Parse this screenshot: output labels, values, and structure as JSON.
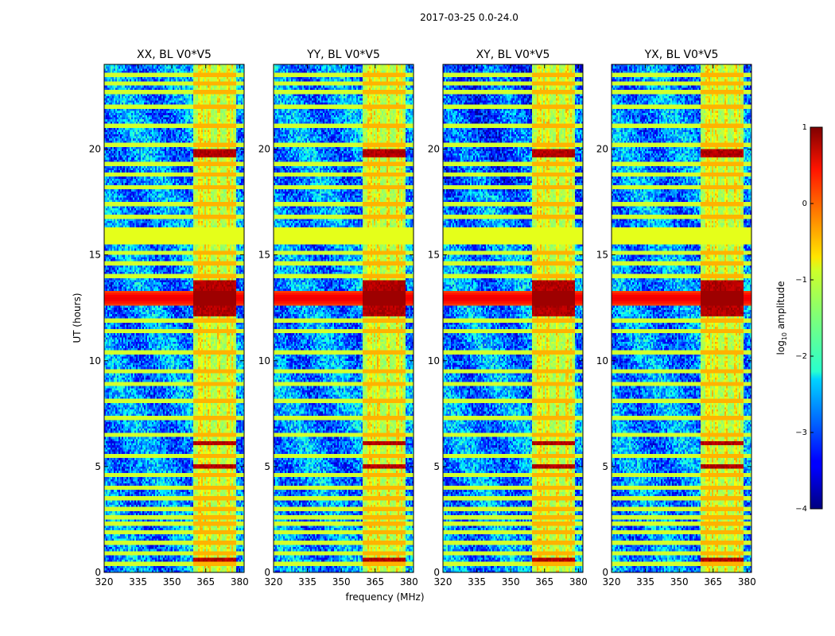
{
  "chart_data": {
    "type": "heatmap",
    "suptitle": "2017-03-25 0.0-24.0",
    "xlabel": "frequency (MHz)",
    "ylabel": "UT (hours)",
    "xlim": [
      320,
      382
    ],
    "ylim": [
      0,
      24
    ],
    "xticks": [
      320,
      335,
      350,
      365,
      380
    ],
    "yticks": [
      0,
      5,
      10,
      15,
      20
    ],
    "panels": [
      {
        "title": "XX, BL V0*V5"
      },
      {
        "title": "YY, BL V0*V5"
      },
      {
        "title": "XY, BL V0*V5"
      },
      {
        "title": "YX, BL V0*V5"
      }
    ],
    "colorbar": {
      "label_prefix": "log",
      "label_sub": "10",
      "label_suffix": " amplitude",
      "range": [
        -4,
        1
      ],
      "ticks": [
        1,
        0,
        -1,
        -2,
        -3,
        -4
      ],
      "tick_labels": [
        "1",
        "0",
        "−1",
        "−2",
        "−3",
        "−4"
      ],
      "colormap": "jet"
    },
    "features": {
      "rfi_band_mhz": [
        359.5,
        378.5
      ],
      "rfi_channels_mhz": [
        360,
        361,
        364,
        365.5,
        368,
        369.5,
        372,
        373.5,
        376,
        378
      ],
      "broadband_event_hours": [
        12.6,
        13.3
      ],
      "flagged_row_hours": [
        15.5,
        16.3
      ],
      "strong_rfi_hours": [
        [
          19.6,
          20.0
        ],
        [
          13.3,
          13.8
        ],
        [
          12.1,
          12.6
        ],
        [
          4.85,
          5.1
        ],
        [
          6.0,
          6.2
        ],
        [
          0.4,
          0.7
        ]
      ],
      "horizontal_lines_hours": [
        0.4,
        0.9,
        1.4,
        1.9,
        2.3,
        2.6,
        3.0,
        3.5,
        4.0,
        4.6,
        5.5,
        6.5,
        7.3,
        8.1,
        8.9,
        9.5,
        10.4,
        11.4,
        11.9,
        14.0,
        14.6,
        15.1,
        16.8,
        17.4,
        18.2,
        18.8,
        19.3,
        20.2,
        21.1,
        22.0,
        22.7,
        23.1,
        23.5
      ]
    }
  }
}
